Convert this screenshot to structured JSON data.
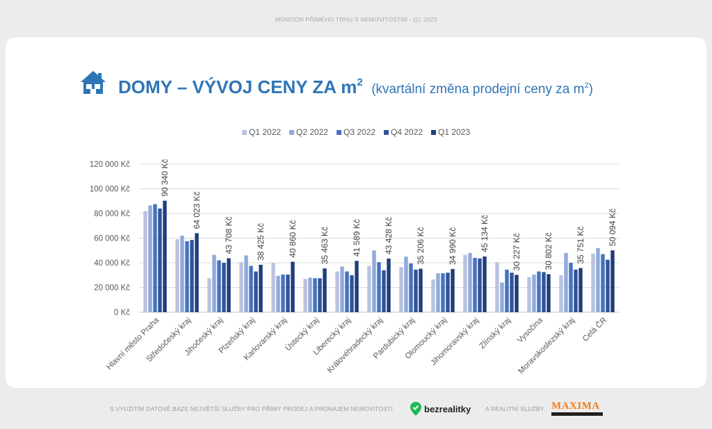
{
  "header": {
    "top_caption": "MONITOR PŘÍMÉHO TRHU S NEMOVITOSTMI - Q1 2023",
    "title": "DOMY – VÝVOJ CENY ZA m",
    "title_sup": "2",
    "subtitle": "(kvartální změna prodejní ceny za m",
    "subtitle_sup": "2",
    "subtitle_end": ")",
    "icon": "house-icon"
  },
  "chart_data": {
    "type": "bar",
    "categories": [
      "Hlavní město Praha",
      "Středočeský kraj",
      "Jihočeský kraj",
      "Plzeňský kraj",
      "Karlovarský kraj",
      "Ústecký kraj",
      "Liberecký kraj",
      "Královéhradecký kraj",
      "Pardubický kraj",
      "Olomoucký kraj",
      "Jihomoravský kraj",
      "Zlínský kraj",
      "Vysočina",
      "Moravskoslezský kraj",
      "Celá ČR"
    ],
    "series": [
      {
        "name": "Q1 2022",
        "color": "#b9c2e0",
        "values": [
          82000,
          59000,
          27500,
          40500,
          40000,
          27000,
          33000,
          37500,
          36500,
          26500,
          46500,
          40500,
          28500,
          30000,
          47500
        ]
      },
      {
        "name": "Q2 2022",
        "color": "#8faadc",
        "values": [
          86500,
          62000,
          46500,
          46000,
          29500,
          28000,
          37000,
          50000,
          45000,
          31500,
          48000,
          24000,
          30500,
          48000,
          52000
        ]
      },
      {
        "name": "Q3 2022",
        "color": "#4472c4",
        "values": [
          87500,
          57500,
          42000,
          37500,
          30500,
          27500,
          33000,
          40500,
          39500,
          31500,
          44000,
          34500,
          33000,
          40000,
          47000
        ]
      },
      {
        "name": "Q4 2022",
        "color": "#2f5597",
        "values": [
          84000,
          58500,
          40000,
          33000,
          30500,
          27500,
          30000,
          34000,
          34500,
          32000,
          43500,
          32000,
          32500,
          34500,
          42500
        ]
      },
      {
        "name": "Q1 2023",
        "color": "#1f3d7a",
        "values": [
          90340,
          64023,
          43708,
          38425,
          40860,
          35463,
          41589,
          43428,
          35206,
          34990,
          45134,
          30227,
          30802,
          35751,
          50094
        ]
      }
    ],
    "data_labels": [
      "90 340 Kč",
      "64 023 Kč",
      "43 708 Kč",
      "38 425 Kč",
      "40 860 Kč",
      "35 463 Kč",
      "41 589 Kč",
      "43 428 Kč",
      "35 206 Kč",
      "34 990 Kč",
      "45 134 Kč",
      "30 227 Kč",
      "30 802 Kč",
      "35 751 Kč",
      "50 094 Kč"
    ],
    "y_ticks": [
      0,
      20000,
      40000,
      60000,
      80000,
      100000,
      120000
    ],
    "y_tick_labels": [
      "0 Kč",
      "20 000 Kč",
      "40 000 Kč",
      "60 000 Kč",
      "80 000 Kč",
      "100 000 Kč",
      "120 000 Kč"
    ],
    "ylim": [
      0,
      120000
    ],
    "grid": true,
    "legend_position": "top-center"
  },
  "footer": {
    "left_text": "S VYUŽITÍM DATOVÉ BÁZE NEJVĚTŠÍ SLUŽBY PRO PŘÍMÝ PRODEJ A PRONÁJEM NEMOVITOSTÍ",
    "brand1": "bezrealitky",
    "middle_text": "A REALITNÍ SLUŽBY",
    "brand2": "MAXIMA",
    "brand2_sub": "REALITY"
  }
}
